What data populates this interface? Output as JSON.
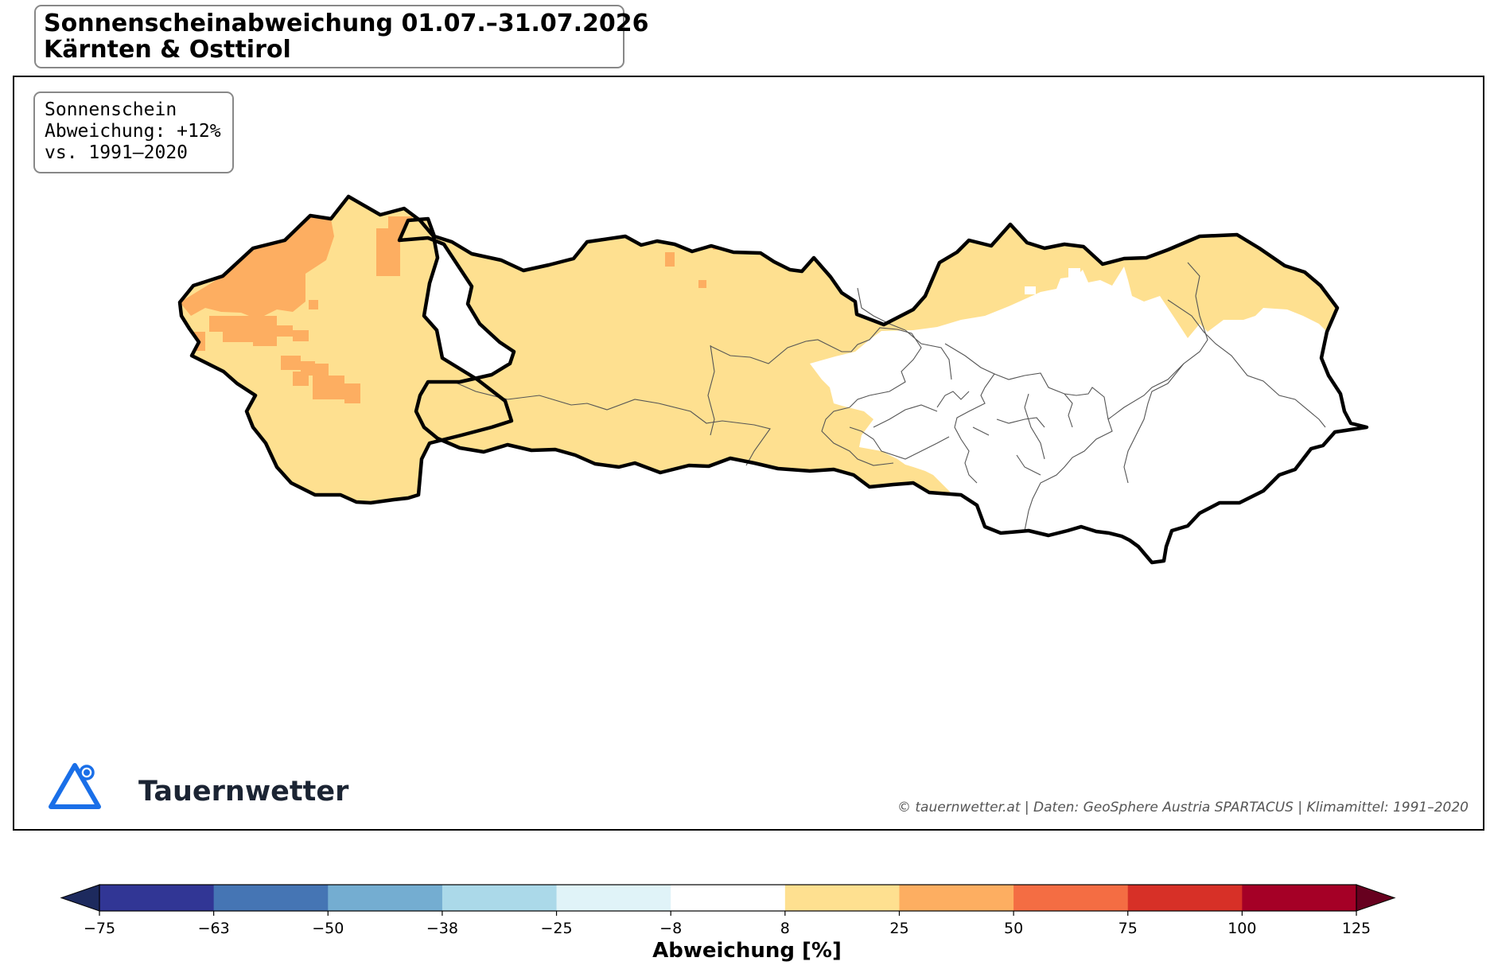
{
  "title": {
    "line1": "Sonnenscheinabweichung 01.07.–31.07.2026",
    "line2": "Kärnten & Osttirol"
  },
  "info": {
    "line1": "Sonnenschein",
    "line2": "Abweichung: +12%",
    "line3": "vs. 1991–2020"
  },
  "logo": {
    "name": "Tauernwetter",
    "icon": "mountain-triangle-icon",
    "color": "#1a6fe8"
  },
  "credit": "© tauernwetter.at | Daten: GeoSphere Austria SPARTACUS | Klimamittel: 1991–2020",
  "colorbar": {
    "label": "Abweichung [%]",
    "ticks": [
      "−75",
      "−63",
      "−50",
      "−38",
      "−25",
      "−8",
      "8",
      "25",
      "50",
      "75",
      "100",
      "125"
    ],
    "colors": [
      "#313695",
      "#4575b4",
      "#74add1",
      "#abd9e9",
      "#e0f3f8",
      "#ffffff",
      "#fee090",
      "#fdae61",
      "#f46d43",
      "#d73027",
      "#a50026"
    ],
    "under_color": "#1d2a5e",
    "over_color": "#67001f"
  },
  "map_colors": {
    "pale_orange": "#fee090",
    "orange": "#fdae61",
    "white": "#ffffff",
    "outline": "#000000",
    "district_line": "#555555"
  }
}
